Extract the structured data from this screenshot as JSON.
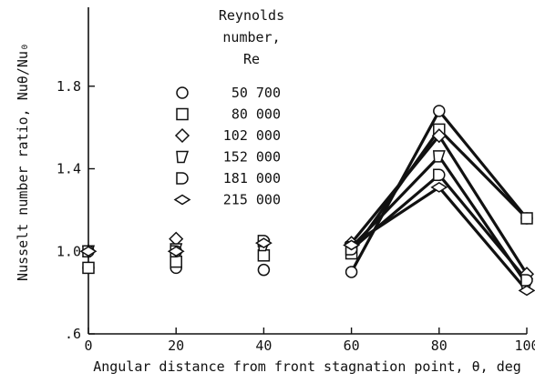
{
  "chart_data": {
    "type": "scatter",
    "title": "",
    "xlabel": "Angular distance from front stagnation point, θ, deg",
    "ylabel": "Nusselt number ratio, Nuθ/Nu₀",
    "xlim": [
      0,
      100
    ],
    "ylim": [
      0.6,
      2.2
    ],
    "x_ticks": [
      0,
      20,
      40,
      60,
      80,
      100
    ],
    "x_tick_labels": [
      "0",
      "20",
      "40",
      "60",
      "80",
      "100"
    ],
    "y_ticks": [
      0.6,
      1.0,
      1.4,
      1.8
    ],
    "y_tick_labels": [
      ".6",
      "1.0",
      "1.4",
      "1.8"
    ],
    "grid": false,
    "lines_connect_x_from": 60,
    "legend": {
      "title_lines": [
        "Reynolds",
        "number,",
        "Re"
      ],
      "placement": "upper-left-inside"
    },
    "series": [
      {
        "name": "50 700",
        "marker": "circle",
        "x": [
          0,
          20,
          40,
          60,
          80,
          100
        ],
        "y": [
          0.92,
          0.92,
          0.91,
          0.9,
          1.68,
          1.16
        ]
      },
      {
        "name": "80 000",
        "marker": "square",
        "x": [
          0,
          20,
          40,
          60,
          80,
          100
        ],
        "y": [
          0.92,
          0.95,
          0.98,
          0.99,
          1.59,
          1.16
        ]
      },
      {
        "name": "102 000",
        "marker": "diamond",
        "x": [
          0,
          20,
          40,
          60,
          80,
          100
        ],
        "y": [
          1.0,
          1.06,
          1.04,
          1.04,
          1.56,
          0.89
        ]
      },
      {
        "name": "152 000",
        "marker": "flag-triangle",
        "x": [
          0,
          20,
          40,
          60,
          80,
          100
        ],
        "y": [
          1.0,
          1.01,
          1.03,
          1.02,
          1.46,
          0.84
        ]
      },
      {
        "name": "181 000",
        "marker": "d-shape",
        "x": [
          0,
          20,
          40,
          60,
          80,
          100
        ],
        "y": [
          1.0,
          1.0,
          1.05,
          1.01,
          1.37,
          0.86
        ]
      },
      {
        "name": "215 000",
        "marker": "flat-diamond",
        "x": [
          0,
          20,
          40,
          60,
          80,
          100
        ],
        "y": [
          1.0,
          1.0,
          1.04,
          1.03,
          1.31,
          0.81
        ]
      }
    ]
  }
}
